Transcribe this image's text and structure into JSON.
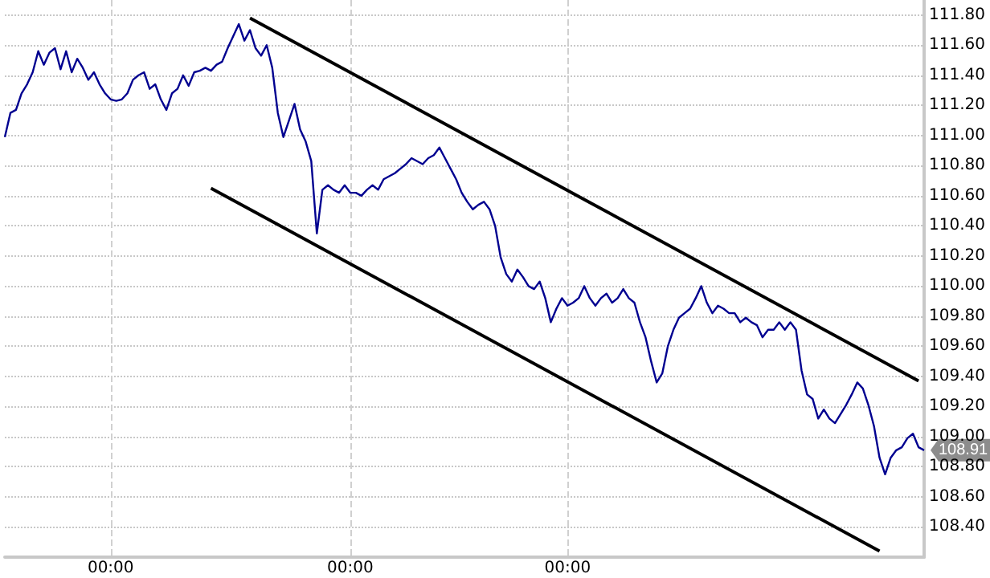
{
  "chart_data": {
    "type": "line",
    "marker": "none",
    "line_style": "solid",
    "grid": true,
    "categories": [
      null,
      null,
      null,
      null,
      null,
      null,
      null,
      null,
      null,
      null,
      null,
      null,
      null,
      null,
      null,
      null,
      null,
      null,
      null,
      "00:00",
      null,
      null,
      null,
      null,
      null,
      null,
      null,
      null,
      null,
      null,
      null,
      null,
      null,
      null,
      null,
      null,
      null,
      null,
      null,
      null,
      null,
      null,
      null,
      null,
      null,
      null,
      null,
      null,
      null,
      null,
      null,
      null,
      null,
      null,
      null,
      null,
      null,
      null,
      null,
      null,
      null,
      null,
      "00:00",
      null,
      null,
      null,
      null,
      null,
      null,
      null,
      null,
      null,
      null,
      null,
      null,
      null,
      null,
      null,
      null,
      null,
      null,
      null,
      null,
      null,
      null,
      null,
      null,
      null,
      null,
      null,
      null,
      null,
      null,
      null,
      null,
      null,
      null,
      null,
      null,
      null,
      null,
      "00:00",
      null,
      null,
      null,
      null,
      null,
      null,
      null,
      null,
      null,
      null,
      null,
      null,
      null,
      null,
      null,
      null,
      null,
      null,
      null,
      null,
      null,
      null,
      null,
      null,
      null,
      null,
      null,
      null,
      null,
      null,
      null,
      null,
      null,
      null,
      null,
      null,
      null,
      null,
      null,
      null,
      null,
      null,
      null,
      null,
      null,
      null,
      null,
      null,
      null,
      null,
      null,
      null,
      null,
      null,
      null,
      null,
      null,
      null,
      null,
      null,
      null,
      null,
      null,
      null
    ],
    "ylim": [
      108.2,
      111.9
    ],
    "yticks": [
      {
        "value": 108.4,
        "label": "108.40"
      },
      {
        "value": 108.6,
        "label": "108.60"
      },
      {
        "value": 108.8,
        "label": "108.80"
      },
      {
        "value": 109.0,
        "label": "109.00"
      },
      {
        "value": 109.2,
        "label": "109.20"
      },
      {
        "value": 109.4,
        "label": "109.40"
      },
      {
        "value": 109.6,
        "label": "109.60"
      },
      {
        "value": 109.8,
        "label": "109.80"
      },
      {
        "value": 110.0,
        "label": "110.00"
      },
      {
        "value": 110.2,
        "label": "110.20"
      },
      {
        "value": 110.4,
        "label": "110.40"
      },
      {
        "value": 110.6,
        "label": "110.60"
      },
      {
        "value": 110.8,
        "label": "110.80"
      },
      {
        "value": 111.0,
        "label": "111.00"
      },
      {
        "value": 111.2,
        "label": "111.20"
      },
      {
        "value": 111.4,
        "label": "111.40"
      },
      {
        "value": 111.6,
        "label": "111.60"
      },
      {
        "value": 111.8,
        "label": "111.80"
      }
    ],
    "series": [
      {
        "color": "#000090",
        "values": [
          110.99,
          111.15,
          111.17,
          111.28,
          111.34,
          111.42,
          111.56,
          111.47,
          111.55,
          111.58,
          111.44,
          111.56,
          111.42,
          111.51,
          111.45,
          111.37,
          111.42,
          111.34,
          111.28,
          111.24,
          111.23,
          111.24,
          111.28,
          111.37,
          111.4,
          111.42,
          111.31,
          111.34,
          111.24,
          111.17,
          111.28,
          111.31,
          111.4,
          111.33,
          111.42,
          111.43,
          111.45,
          111.43,
          111.47,
          111.49,
          111.58,
          111.66,
          111.74,
          111.63,
          111.7,
          111.58,
          111.53,
          111.6,
          111.45,
          111.15,
          110.99,
          111.1,
          111.21,
          111.04,
          110.96,
          110.83,
          110.35,
          110.64,
          110.67,
          110.64,
          110.62,
          110.67,
          110.62,
          110.62,
          110.6,
          110.64,
          110.67,
          110.64,
          110.71,
          110.73,
          110.75,
          110.78,
          110.81,
          110.85,
          110.83,
          110.81,
          110.85,
          110.87,
          110.92,
          110.85,
          110.78,
          110.71,
          110.62,
          110.56,
          110.51,
          110.54,
          110.56,
          110.51,
          110.4,
          110.19,
          110.08,
          110.03,
          110.11,
          110.06,
          110.0,
          109.98,
          110.03,
          109.92,
          109.76,
          109.85,
          109.92,
          109.87,
          109.89,
          109.92,
          110.0,
          109.92,
          109.87,
          109.92,
          109.95,
          109.89,
          109.92,
          109.98,
          109.92,
          109.89,
          109.76,
          109.66,
          109.5,
          109.36,
          109.42,
          109.6,
          109.71,
          109.79,
          109.82,
          109.85,
          109.92,
          110.0,
          109.89,
          109.82,
          109.87,
          109.85,
          109.82,
          109.82,
          109.76,
          109.79,
          109.76,
          109.74,
          109.66,
          109.71,
          109.71,
          109.76,
          109.71,
          109.76,
          109.71,
          109.44,
          109.28,
          109.25,
          109.12,
          109.18,
          109.12,
          109.09,
          109.15,
          109.21,
          109.28,
          109.36,
          109.32,
          109.21,
          109.07,
          108.86,
          108.75,
          108.86,
          108.91,
          108.93,
          108.99,
          109.02,
          108.93,
          108.91
        ]
      },
      {
        "color": "#000000",
        "values": [
          null,
          null,
          null,
          null,
          null,
          null,
          null,
          null,
          null,
          null,
          null,
          null,
          null,
          null,
          null,
          null,
          null,
          null,
          null,
          null,
          null,
          null,
          null,
          null,
          null,
          null,
          null,
          null,
          null,
          null,
          null,
          null,
          null,
          null,
          null,
          null,
          null,
          null,
          null,
          null,
          null,
          null,
          null,
          null,
          111.78,
          null,
          null,
          null,
          null,
          null,
          null,
          null,
          null,
          null,
          null,
          null,
          null,
          null,
          null,
          null,
          null,
          null,
          null,
          null,
          null,
          null,
          null,
          null,
          null,
          null,
          null,
          null,
          null,
          null,
          null,
          null,
          null,
          null,
          null,
          null,
          null,
          null,
          null,
          null,
          null,
          null,
          null,
          null,
          null,
          null,
          null,
          null,
          null,
          null,
          null,
          null,
          null,
          null,
          null,
          null,
          null,
          null,
          null,
          null,
          null,
          null,
          null,
          null,
          null,
          null,
          null,
          null,
          null,
          null,
          null,
          null,
          null,
          null,
          null,
          null,
          null,
          null,
          null,
          null,
          null,
          null,
          null,
          null,
          null,
          null,
          null,
          null,
          null,
          null,
          null,
          null,
          null,
          null,
          null,
          null,
          null,
          null,
          null,
          null,
          null,
          null,
          null,
          null,
          null,
          null,
          null,
          null,
          null,
          null,
          null,
          null,
          null,
          null,
          null,
          null,
          null,
          null,
          null,
          null,
          109.37,
          null
        ]
      },
      {
        "color": "#000000",
        "values": [
          null,
          null,
          null,
          null,
          null,
          null,
          null,
          null,
          null,
          null,
          null,
          null,
          null,
          null,
          null,
          null,
          null,
          null,
          null,
          null,
          null,
          null,
          null,
          null,
          null,
          null,
          null,
          null,
          null,
          null,
          null,
          null,
          null,
          null,
          null,
          null,
          null,
          110.65,
          null,
          null,
          null,
          null,
          null,
          null,
          null,
          null,
          null,
          null,
          null,
          null,
          null,
          null,
          null,
          null,
          null,
          null,
          null,
          null,
          null,
          null,
          null,
          null,
          null,
          null,
          null,
          null,
          null,
          null,
          null,
          null,
          null,
          null,
          null,
          null,
          null,
          null,
          null,
          null,
          null,
          null,
          null,
          null,
          null,
          null,
          null,
          null,
          null,
          null,
          null,
          null,
          null,
          null,
          null,
          null,
          null,
          null,
          null,
          null,
          null,
          null,
          null,
          null,
          null,
          null,
          null,
          null,
          null,
          null,
          null,
          null,
          null,
          null,
          null,
          null,
          null,
          null,
          null,
          null,
          null,
          null,
          null,
          null,
          null,
          null,
          null,
          null,
          null,
          null,
          null,
          null,
          null,
          null,
          null,
          null,
          null,
          null,
          null,
          null,
          null,
          null,
          null,
          null,
          null,
          null,
          null,
          null,
          null,
          null,
          null,
          null,
          null,
          null,
          null,
          null,
          null,
          null,
          null,
          108.24,
          null,
          null,
          null,
          null,
          null,
          null,
          null,
          null
        ]
      }
    ],
    "annotations": [
      "108.91"
    ]
  }
}
